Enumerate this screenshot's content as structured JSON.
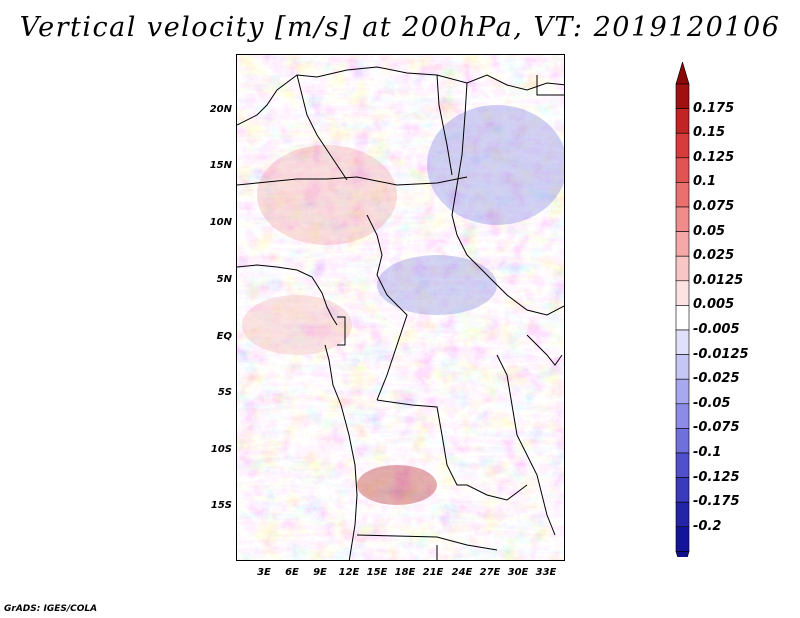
{
  "title": "Vertical velocity [m/s] at 200hPa, VT: 2019120106",
  "credit": "GrADS: IGES/COLA",
  "lat_labels": [
    "20N",
    "15N",
    "10N",
    "5N",
    "EQ",
    "5S",
    "10S",
    "15S"
  ],
  "lon_labels": [
    "3E",
    "6E",
    "9E",
    "12E",
    "15E",
    "18E",
    "21E",
    "24E",
    "27E",
    "30E",
    "33E"
  ],
  "colorbar": {
    "labels": [
      "0.175",
      "0.15",
      "0.125",
      "0.1",
      "0.075",
      "0.05",
      "0.025",
      "0.0125",
      "0.005",
      "-0.005",
      "-0.0125",
      "-0.025",
      "-0.05",
      "-0.075",
      "-0.1",
      "-0.125",
      "-0.175",
      "-0.2"
    ],
    "colors": [
      "#a01010",
      "#c02424",
      "#d63c3c",
      "#e25454",
      "#ea7070",
      "#f08c8c",
      "#f5a8a8",
      "#f9c6c6",
      "#fce2e2",
      "#ffffff",
      "#e0e0fa",
      "#c6c6f5",
      "#a8a8ee",
      "#8c8ce6",
      "#7070dc",
      "#5050cc",
      "#3a3abc",
      "#2424a8",
      "#14149a"
    ],
    "top_arrow_color": "#8a0808",
    "bottom_arrow_color": "#10108a"
  },
  "chart_data": {
    "type": "heatmap",
    "variable": "Vertical velocity",
    "units": "m/s",
    "level": "200hPa",
    "valid_time": "2019120106",
    "lon_range": [
      0,
      35
    ],
    "lat_range": [
      -19,
      25
    ],
    "lon_ticks": [
      3,
      6,
      9,
      12,
      15,
      18,
      21,
      24,
      27,
      30,
      33
    ],
    "lat_ticks": [
      20,
      15,
      10,
      5,
      0,
      -5,
      -10,
      -15
    ],
    "levels": [
      -0.2,
      -0.175,
      -0.125,
      -0.1,
      -0.075,
      -0.05,
      -0.025,
      -0.0125,
      -0.005,
      0.005,
      0.0125,
      0.025,
      0.05,
      0.075,
      0.1,
      0.125,
      0.15,
      0.175
    ]
  }
}
